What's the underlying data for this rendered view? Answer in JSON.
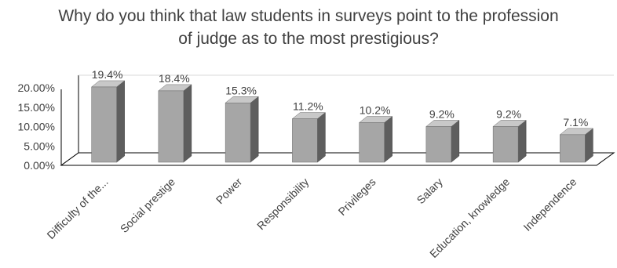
{
  "chart_data": {
    "type": "bar",
    "title_lines": [
      "Why do you think that law students in surveys point to the profession",
      "of judge as to the most prestigious?"
    ],
    "xlabel": "",
    "ylabel": "",
    "categories": [
      "Difficulty of the...",
      "Social prestige",
      "Power",
      "Responsibility",
      "Privileges",
      "Salary",
      "Education, knowledge",
      "Independence"
    ],
    "values": [
      19.4,
      18.4,
      15.3,
      11.2,
      10.2,
      9.2,
      9.2,
      7.1
    ],
    "data_labels": [
      "19.4%",
      "18.4%",
      "15.3%",
      "11.2%",
      "10.2%",
      "9.2%",
      "9.2%",
      "7.1%"
    ],
    "y_ticks": [
      "0.00%",
      "5.00%",
      "10.00%",
      "15.00%",
      "20.00%"
    ],
    "y_tick_values": [
      0,
      5,
      10,
      15,
      20
    ],
    "ylim": [
      0,
      20
    ],
    "style": "3d-clustered-column",
    "colors": {
      "bar_front": "#a6a6a6",
      "bar_side": "#5e5e5e",
      "bar_top": "#c8c8c8",
      "axis": "#000000",
      "text": "#404040"
    },
    "grid": false,
    "legend": "none"
  }
}
